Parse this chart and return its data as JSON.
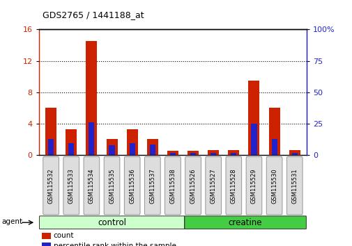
{
  "title": "GDS2765 / 1441188_at",
  "categories": [
    "GSM115532",
    "GSM115533",
    "GSM115534",
    "GSM115535",
    "GSM115536",
    "GSM115537",
    "GSM115538",
    "GSM115526",
    "GSM115527",
    "GSM115528",
    "GSM115529",
    "GSM115530",
    "GSM115531"
  ],
  "count_values": [
    6.0,
    3.3,
    14.5,
    2.0,
    3.3,
    2.0,
    0.5,
    0.5,
    0.6,
    0.6,
    9.5,
    6.0,
    0.6
  ],
  "percentile_values": [
    12.5,
    9.4,
    26.25,
    7.5,
    9.4,
    8.1,
    1.9,
    1.9,
    1.9,
    1.9,
    25.0,
    12.5,
    1.9
  ],
  "count_color": "#cc2200",
  "percentile_color": "#2222cc",
  "left_yticks": [
    0,
    4,
    8,
    12,
    16
  ],
  "right_yticks": [
    0,
    25,
    50,
    75,
    100
  ],
  "ylim_left": [
    0,
    16
  ],
  "ylim_right": [
    0,
    100
  ],
  "group_labels": [
    "control",
    "creatine"
  ],
  "group_colors_light": "#ccffcc",
  "group_colors_dark": "#44cc44",
  "agent_label": "agent",
  "bar_width": 0.55,
  "pct_bar_width": 0.28,
  "bg_color": "#ffffff",
  "tick_label_color_left": "#cc2200",
  "tick_label_color_right": "#2222cc",
  "legend_count": "count",
  "legend_percentile": "percentile rank within the sample",
  "grid_color": "#000000"
}
